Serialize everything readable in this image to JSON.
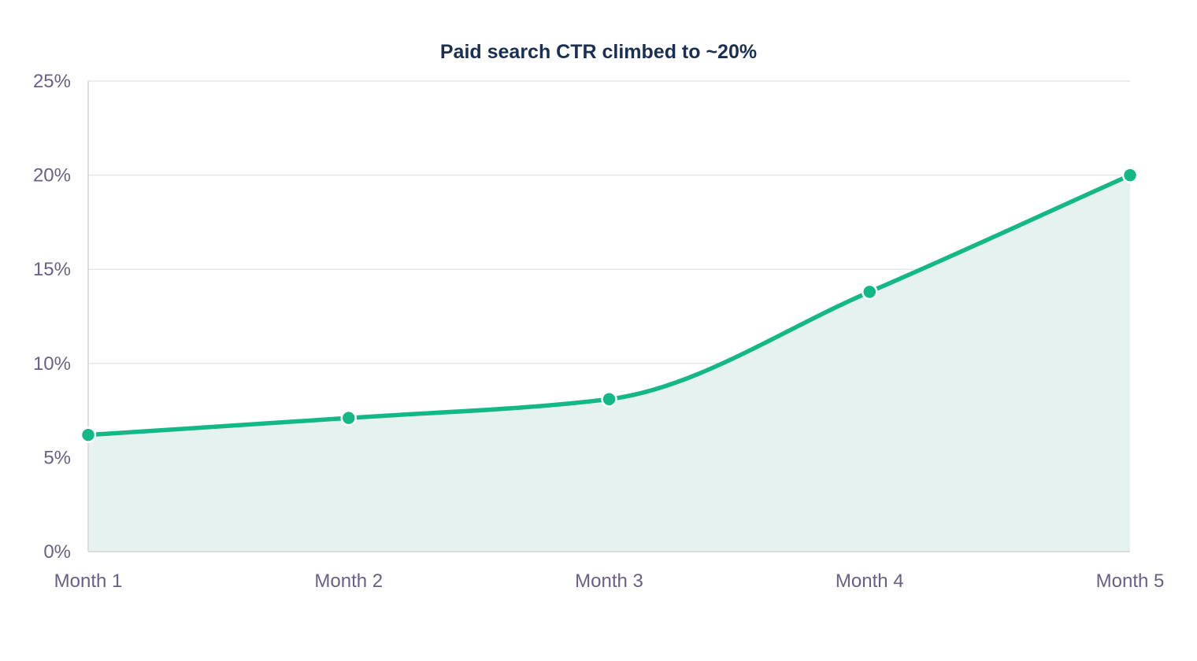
{
  "chart_data": {
    "type": "area",
    "title": "Paid search CTR climbed to ~20%",
    "xlabel": "",
    "ylabel": "",
    "categories": [
      "Month 1",
      "Month 2",
      "Month 3",
      "Month 4",
      "Month 5"
    ],
    "series": [
      {
        "values": [
          6.2,
          7.1,
          8.1,
          13.8,
          20.0
        ],
        "color": "#13b886",
        "fill_color": "#e5f2f0"
      }
    ],
    "ylim": [
      0,
      25
    ],
    "yticks": [
      0,
      5,
      10,
      15,
      20,
      25
    ],
    "ytick_labels": [
      "0%",
      "5%",
      "10%",
      "15%",
      "20%",
      "25%"
    ],
    "grid": true,
    "legend": "none",
    "colors": {
      "title": "#1b2f52",
      "tick_label": "#6b5f86",
      "gridline": "#e6e6e6",
      "axis": "#d3d3d3"
    }
  }
}
